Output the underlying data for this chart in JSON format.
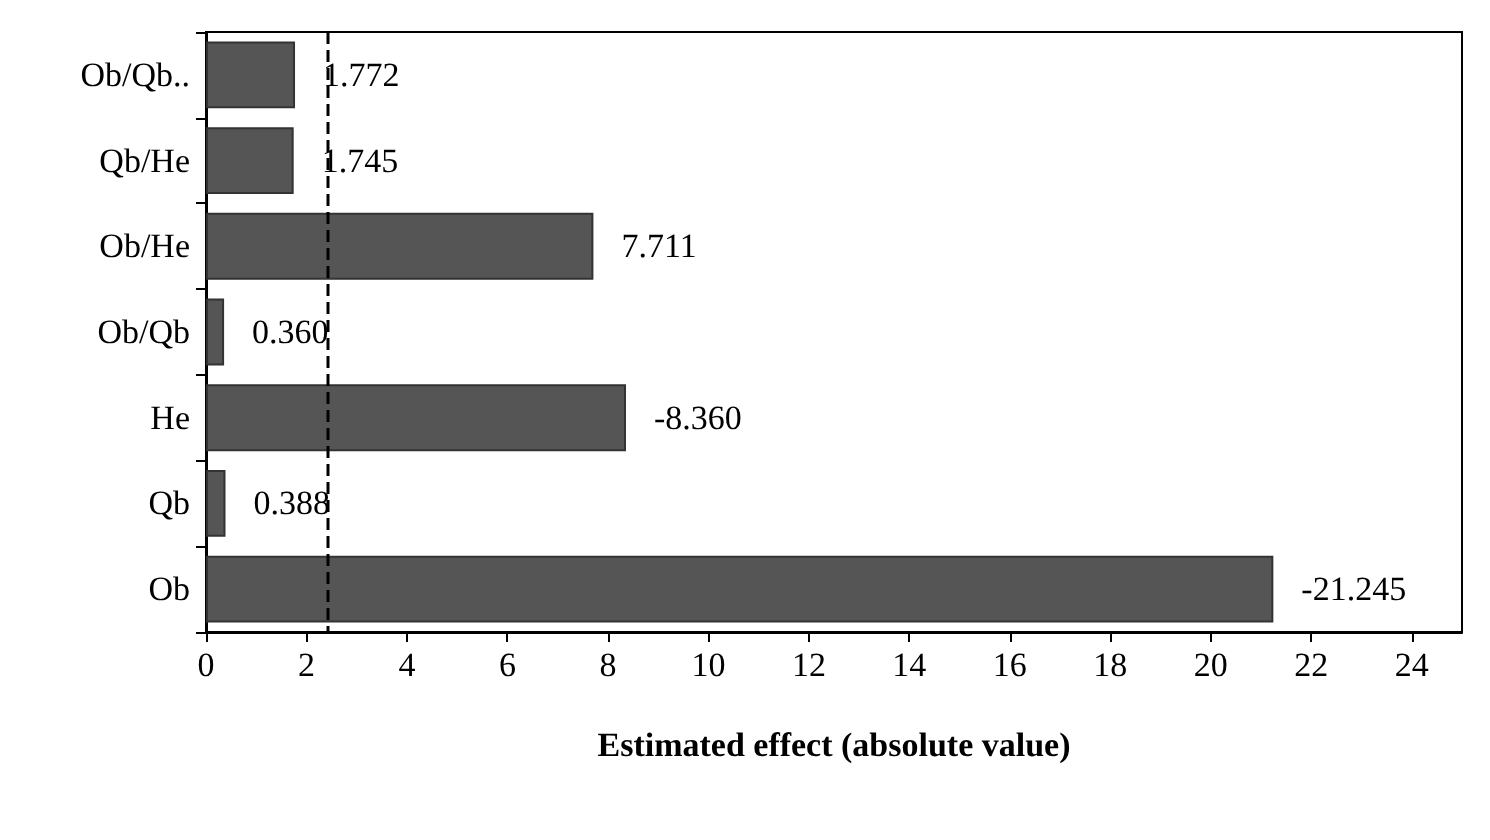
{
  "chart_data": {
    "type": "bar",
    "orientation": "horizontal",
    "xlabel": "Estimated effect (absolute value)",
    "categories": [
      "Ob/Qb..",
      "Qb/He",
      "Ob/He",
      "Ob/Qb",
      "He",
      "Qb",
      "Ob"
    ],
    "values": [
      1.772,
      1.745,
      7.711,
      0.36,
      8.36,
      0.388,
      21.245
    ],
    "annotations": [
      {
        "text": "1.772",
        "x": 1.772,
        "y": "Ob/Qb.."
      },
      {
        "text": "1.745",
        "x": 1.745,
        "y": "Qb/He"
      },
      {
        "text": "7.711",
        "x": 7.711,
        "y": "Ob/He"
      },
      {
        "text": "0.360",
        "x": 0.36,
        "y": "Ob/Qb"
      },
      {
        "text": "-8.360",
        "x": 8.36,
        "y": "He"
      },
      {
        "text": "0.388",
        "x": 0.388,
        "y": "Qb"
      },
      {
        "text": "-21.245",
        "x": 21.245,
        "y": "Ob"
      }
    ],
    "color": "#555555",
    "xlim": [
      0,
      25
    ],
    "xticks": [
      0,
      2,
      4,
      6,
      8,
      10,
      12,
      14,
      16,
      18,
      20,
      22,
      24
    ],
    "ref_lines": [
      {
        "axis": "x",
        "value": 2.4,
        "color": "#000000",
        "line_style": "dashed"
      }
    ]
  }
}
